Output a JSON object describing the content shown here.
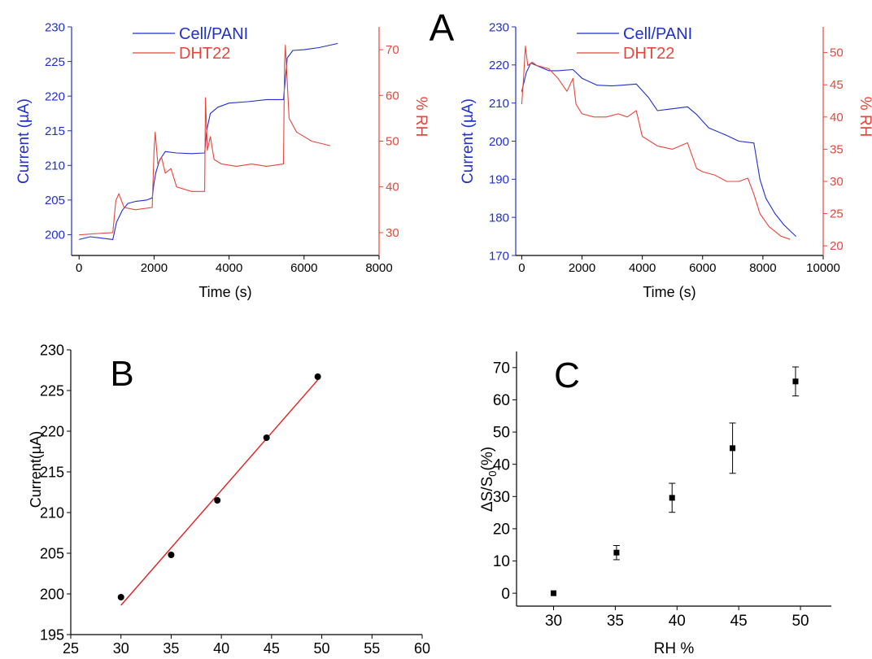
{
  "colors": {
    "blue": "#1f2fd0",
    "red": "#e8453c",
    "black": "#000000",
    "fit": "#e02020"
  },
  "chart_data": [
    {
      "id": "A1",
      "type": "line",
      "panel_label": "A",
      "xlabel": "Time (s)",
      "ylabel": "Current (µA)",
      "y2label": "% RH",
      "xlim": [
        -200,
        8000
      ],
      "ylim": [
        197,
        230
      ],
      "y2lim": [
        25,
        75
      ],
      "xticks": [
        0,
        2000,
        4000,
        6000,
        8000
      ],
      "yticks": [
        200,
        205,
        210,
        215,
        220,
        225,
        230
      ],
      "y2ticks": [
        30,
        40,
        50,
        60,
        70
      ],
      "legend": "top-center",
      "series": [
        {
          "name": "Cell/PANI",
          "axis": "left",
          "color": "#1f2fd0",
          "x": [
            0,
            300,
            600,
            900,
            1000,
            1150,
            1300,
            1500,
            1800,
            1950,
            2000,
            2050,
            2150,
            2300,
            2600,
            3000,
            3350,
            3400,
            3500,
            3700,
            4000,
            4500,
            5000,
            5450,
            5500,
            5550,
            5700,
            6000,
            6400,
            6900
          ],
          "y": [
            199.3,
            199.7,
            199.5,
            199.3,
            201.8,
            203.5,
            204.5,
            204.8,
            205.0,
            205.3,
            207.5,
            209.0,
            210.8,
            212.0,
            211.8,
            211.7,
            211.8,
            215.0,
            217.5,
            218.4,
            219.0,
            219.2,
            219.5,
            219.5,
            222.5,
            225.5,
            226.6,
            226.7,
            227.0,
            227.6
          ]
        },
        {
          "name": "DHT22",
          "axis": "right",
          "color": "#e8453c",
          "x": [
            0,
            500,
            900,
            980,
            1060,
            1200,
            1500,
            1950,
            2000,
            2030,
            2100,
            2200,
            2300,
            2450,
            2600,
            3000,
            3350,
            3370,
            3420,
            3500,
            3600,
            3800,
            4200,
            4600,
            5000,
            5450,
            5480,
            5500,
            5600,
            5800,
            6200,
            6700
          ],
          "y": [
            29.5,
            29.8,
            30.0,
            37.0,
            38.5,
            35.5,
            35.0,
            35.5,
            48.0,
            52.0,
            45.0,
            46.5,
            43.0,
            44.0,
            40.0,
            39.0,
            39.0,
            59.5,
            48.0,
            51.0,
            46.0,
            45.0,
            44.5,
            45.0,
            44.5,
            45.0,
            67.0,
            71.0,
            55.0,
            52.0,
            50.0,
            49.0
          ]
        }
      ]
    },
    {
      "id": "A2",
      "type": "line",
      "xlabel": "Time (s)",
      "ylabel": "Current (µA)",
      "y2label": "% RH",
      "xlim": [
        -200,
        10000
      ],
      "ylim": [
        170,
        230
      ],
      "y2lim": [
        18.5,
        54
      ],
      "xticks": [
        0,
        2000,
        4000,
        6000,
        8000,
        10000
      ],
      "yticks": [
        170,
        180,
        190,
        200,
        210,
        220,
        230
      ],
      "y2ticks": [
        20,
        25,
        30,
        35,
        40,
        45,
        50
      ],
      "legend": "top-center",
      "series": [
        {
          "name": "Cell/PANI",
          "axis": "left",
          "color": "#1f2fd0",
          "x": [
            0,
            150,
            300,
            600,
            900,
            1200,
            1700,
            2000,
            2500,
            3000,
            3500,
            3800,
            4200,
            4500,
            5000,
            5500,
            5800,
            6200,
            6800,
            7200,
            7700,
            7900,
            8100,
            8400,
            8700,
            9100
          ],
          "y": [
            213.0,
            218.0,
            220.5,
            219.5,
            218.5,
            218.5,
            218.8,
            216.5,
            214.7,
            214.5,
            214.8,
            215.0,
            211.5,
            208.0,
            208.5,
            209.0,
            207.0,
            203.5,
            201.5,
            200.0,
            199.5,
            190.0,
            185.0,
            181.0,
            178.0,
            175.0
          ]
        },
        {
          "name": "DHT22",
          "axis": "right",
          "color": "#e8453c",
          "x": [
            0,
            60,
            120,
            200,
            350,
            500,
            900,
            1200,
            1500,
            1700,
            1800,
            2000,
            2400,
            2800,
            3200,
            3500,
            3800,
            4000,
            4500,
            5000,
            5500,
            5800,
            6000,
            6400,
            6800,
            7200,
            7500,
            7700,
            7900,
            8200,
            8600,
            8900
          ],
          "y": [
            42.0,
            46.0,
            51.0,
            48.0,
            48.5,
            48.0,
            47.5,
            46.0,
            44.0,
            46.0,
            42.0,
            40.5,
            40.0,
            40.0,
            40.5,
            40.0,
            41.0,
            37.0,
            35.5,
            35.0,
            36.0,
            32.0,
            31.5,
            31.0,
            30.0,
            30.0,
            30.5,
            28.0,
            25.0,
            23.0,
            21.5,
            21.0
          ]
        }
      ]
    },
    {
      "id": "B",
      "type": "scatter",
      "panel_label": "B",
      "xlabel": "RH%",
      "ylabel": "Current(µA)",
      "xlim": [
        25,
        60
      ],
      "ylim": [
        195,
        230
      ],
      "xticks": [
        25,
        30,
        35,
        40,
        45,
        50,
        55,
        60
      ],
      "yticks": [
        195,
        200,
        205,
        210,
        215,
        220,
        225,
        230
      ],
      "points": {
        "x": [
          30,
          35,
          39.6,
          44.5,
          49.6
        ],
        "y": [
          199.6,
          204.8,
          211.5,
          219.2,
          226.7
        ]
      },
      "fit": {
        "x": [
          30,
          49.6
        ],
        "y": [
          198.6,
          226.3
        ]
      }
    },
    {
      "id": "C",
      "type": "scatter",
      "panel_label": "C",
      "xlabel": "RH %",
      "ylabel": "ΔS/S",
      "ylabel_sub": "0",
      "ylabel_suffix": "(%)",
      "xlim": [
        27,
        52.5
      ],
      "ylim": [
        -4,
        75
      ],
      "xticks": [
        30,
        35,
        40,
        45,
        50
      ],
      "yticks": [
        0,
        10,
        20,
        30,
        40,
        50,
        60,
        70
      ],
      "points": {
        "x": [
          30,
          35.1,
          39.6,
          44.5,
          49.6
        ],
        "y": [
          0,
          12.6,
          29.6,
          45.0,
          65.7
        ]
      },
      "errors": [
        0,
        2.2,
        4.5,
        7.8,
        4.5
      ]
    }
  ]
}
